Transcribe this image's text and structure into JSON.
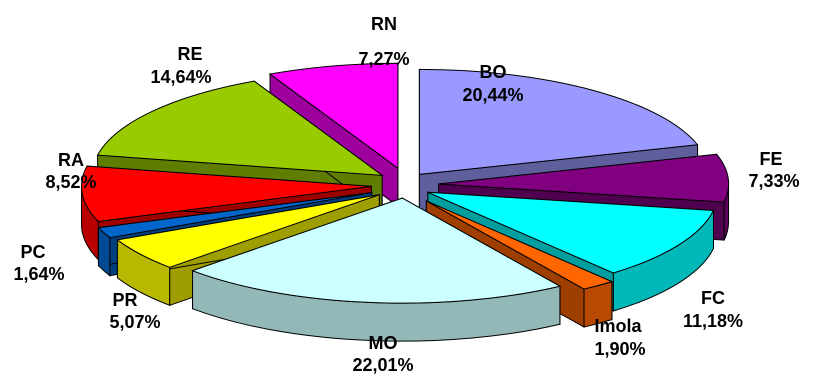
{
  "chart_data": {
    "type": "pie",
    "variant": "3d-exploded",
    "title": "",
    "slices": [
      {
        "name": "BO",
        "value": 20.44,
        "label": "20,44%",
        "color": "#9999ff"
      },
      {
        "name": "FE",
        "value": 7.33,
        "label": "7,33%",
        "color": "#800080"
      },
      {
        "name": "FC",
        "value": 11.18,
        "label": "11,18%",
        "color": "#00ffff"
      },
      {
        "name": "Imola",
        "value": 1.9,
        "label": "1,90%",
        "color": "#ff6600"
      },
      {
        "name": "MO",
        "value": 22.01,
        "label": "22,01%",
        "color": "#ccffff"
      },
      {
        "name": "PR",
        "value": 5.07,
        "label": "5,07%",
        "color": "#ffff00"
      },
      {
        "name": "PC",
        "value": 1.64,
        "label": "1,64%",
        "color": "#0066cc"
      },
      {
        "name": "RA",
        "value": 8.52,
        "label": "8,52%",
        "color": "#ff0000"
      },
      {
        "name": "RE",
        "value": 14.64,
        "label": "14,64%",
        "color": "#99cc00"
      },
      {
        "name": "RN",
        "value": 7.27,
        "label": "7,27%",
        "color": "#ff00ff"
      }
    ]
  }
}
